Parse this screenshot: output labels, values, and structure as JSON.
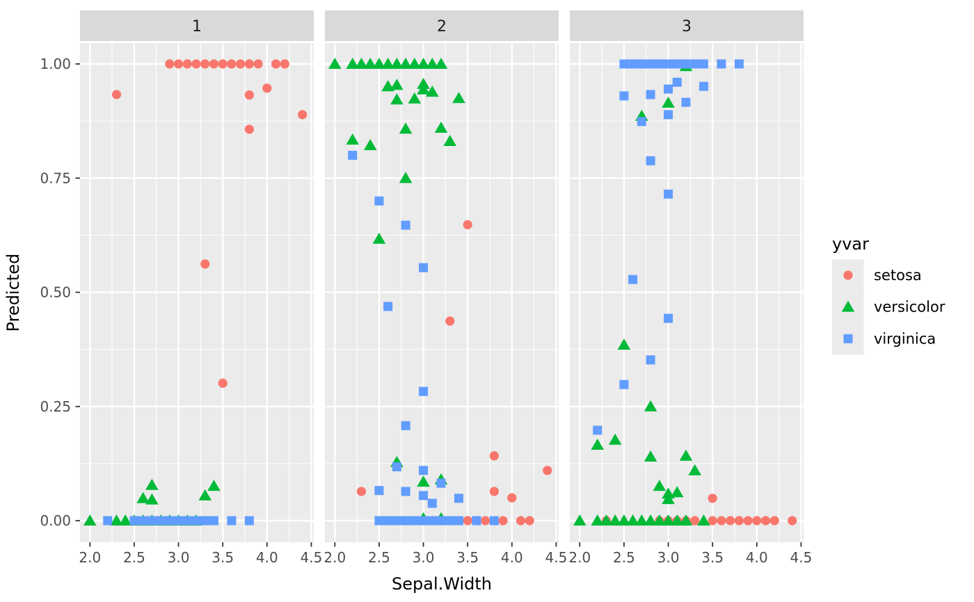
{
  "chart_data": {
    "type": "scatter",
    "xlabel": "Sepal.Width",
    "ylabel": "Predicted",
    "x_ticks": [
      2.0,
      2.5,
      3.0,
      3.5,
      4.0,
      4.5
    ],
    "x_tick_labels": [
      "2.0",
      "2.5",
      "3.0",
      "3.5",
      "4.0",
      "4.5"
    ],
    "x_minor_ticks": [
      2.25,
      2.75,
      3.25,
      3.75,
      4.25
    ],
    "y_ticks": [
      0.0,
      0.25,
      0.5,
      0.75,
      1.0
    ],
    "y_tick_labels": [
      "0.00",
      "0.25",
      "0.50",
      "0.75",
      "1.00"
    ],
    "y_minor_ticks": [
      0.125,
      0.375,
      0.625,
      0.875
    ],
    "xlim": [
      1.89,
      4.53
    ],
    "ylim": [
      -0.047,
      1.047
    ],
    "grid": true,
    "legend_position": "right",
    "legend_title": "yvar",
    "series_meta": [
      {
        "name": "setosa",
        "shape": "circle",
        "color": "#F8766D"
      },
      {
        "name": "versicolor",
        "shape": "triangle",
        "color": "#00BA38"
      },
      {
        "name": "virginica",
        "shape": "square",
        "color": "#619CFF"
      }
    ],
    "facets": [
      {
        "label": "1",
        "points": {
          "setosa": [
            [
              2.9,
              1
            ],
            [
              3.0,
              1
            ],
            [
              3.1,
              1
            ],
            [
              3.2,
              1
            ],
            [
              3.3,
              1
            ],
            [
              3.4,
              1
            ],
            [
              3.5,
              1
            ],
            [
              3.6,
              1
            ],
            [
              3.7,
              1
            ],
            [
              3.8,
              1
            ],
            [
              3.9,
              1
            ],
            [
              4.1,
              1
            ],
            [
              4.2,
              1
            ],
            [
              2.3,
              0.933
            ],
            [
              3.8,
              0.932
            ],
            [
              4.0,
              0.947
            ],
            [
              4.4,
              0.889
            ],
            [
              3.8,
              0.857
            ],
            [
              3.3,
              0.562
            ],
            [
              3.5,
              0.301
            ]
          ],
          "versicolor": [
            [
              2.6,
              0.049
            ],
            [
              2.7,
              0.078
            ],
            [
              2.7,
              0.046
            ],
            [
              3.3,
              0.055
            ],
            [
              3.4,
              0.076
            ],
            [
              2.0,
              0
            ],
            [
              2.3,
              0
            ],
            [
              2.4,
              0
            ],
            [
              2.5,
              0
            ],
            [
              2.6,
              0
            ],
            [
              2.7,
              0
            ],
            [
              2.8,
              0
            ],
            [
              2.9,
              0
            ],
            [
              3.0,
              0
            ],
            [
              3.1,
              0
            ],
            [
              3.2,
              0
            ]
          ],
          "virginica": [
            [
              2.2,
              0
            ],
            [
              2.5,
              0
            ],
            [
              2.6,
              0
            ],
            [
              2.7,
              0
            ],
            [
              2.8,
              0
            ],
            [
              2.9,
              0
            ],
            [
              3.0,
              0
            ],
            [
              3.1,
              0
            ],
            [
              3.2,
              0
            ],
            [
              3.3,
              0
            ],
            [
              3.4,
              0
            ],
            [
              3.6,
              0
            ],
            [
              3.8,
              0
            ]
          ]
        }
      },
      {
        "label": "2",
        "points": {
          "setosa": [
            [
              3.5,
              0.648
            ],
            [
              3.3,
              0.437
            ],
            [
              3.8,
              0.142
            ],
            [
              4.4,
              0.11
            ],
            [
              2.3,
              0.064
            ],
            [
              3.8,
              0.064
            ],
            [
              4.0,
              0.05
            ],
            [
              2.9,
              0
            ],
            [
              3.0,
              0
            ],
            [
              3.1,
              0
            ],
            [
              3.2,
              0
            ],
            [
              3.3,
              0
            ],
            [
              3.4,
              0
            ],
            [
              3.5,
              0
            ],
            [
              3.7,
              0
            ],
            [
              3.9,
              0
            ],
            [
              4.1,
              0
            ],
            [
              4.2,
              0
            ]
          ],
          "versicolor": [
            [
              2.0,
              1
            ],
            [
              2.2,
              1
            ],
            [
              2.3,
              1
            ],
            [
              2.4,
              1
            ],
            [
              2.5,
              1
            ],
            [
              2.6,
              1
            ],
            [
              2.7,
              1
            ],
            [
              2.8,
              1
            ],
            [
              2.9,
              1
            ],
            [
              3.0,
              1
            ],
            [
              3.1,
              1
            ],
            [
              3.2,
              1
            ],
            [
              2.6,
              0.951
            ],
            [
              2.7,
              0.954
            ],
            [
              3.0,
              0.956
            ],
            [
              3.0,
              0.944
            ],
            [
              3.1,
              0.939
            ],
            [
              2.7,
              0.922
            ],
            [
              2.9,
              0.924
            ],
            [
              3.4,
              0.925
            ],
            [
              2.8,
              0.858
            ],
            [
              3.2,
              0.86
            ],
            [
              2.2,
              0.834
            ],
            [
              3.3,
              0.831
            ],
            [
              2.4,
              0.822
            ],
            [
              2.8,
              0.75
            ],
            [
              2.5,
              0.617
            ],
            [
              2.7,
              0.128
            ],
            [
              3.0,
              0.085
            ],
            [
              3.2,
              0.09
            ],
            [
              3.0,
              0.005
            ],
            [
              3.2,
              0.005
            ]
          ],
          "virginica": [
            [
              2.2,
              0.8
            ],
            [
              2.5,
              0.7
            ],
            [
              2.8,
              0.647
            ],
            [
              3.0,
              0.554
            ],
            [
              2.6,
              0.469
            ],
            [
              3.0,
              0.283
            ],
            [
              2.8,
              0.208
            ],
            [
              2.7,
              0.118
            ],
            [
              3.0,
              0.11
            ],
            [
              3.2,
              0.082
            ],
            [
              2.5,
              0.066
            ],
            [
              2.8,
              0.064
            ],
            [
              3.0,
              0.055
            ],
            [
              3.4,
              0.049
            ],
            [
              3.1,
              0.038
            ],
            [
              2.5,
              0
            ],
            [
              2.6,
              0
            ],
            [
              2.7,
              0
            ],
            [
              2.8,
              0
            ],
            [
              2.9,
              0
            ],
            [
              3.0,
              0
            ],
            [
              3.1,
              0
            ],
            [
              3.2,
              0
            ],
            [
              3.3,
              0
            ],
            [
              3.4,
              0
            ],
            [
              3.6,
              0
            ],
            [
              3.8,
              0
            ]
          ]
        }
      },
      {
        "label": "3",
        "points": {
          "setosa": [
            [
              3.5,
              0.049
            ],
            [
              2.3,
              0
            ],
            [
              2.9,
              0
            ],
            [
              3.0,
              0
            ],
            [
              3.1,
              0
            ],
            [
              3.2,
              0
            ],
            [
              3.3,
              0
            ],
            [
              3.5,
              0
            ],
            [
              3.6,
              0
            ],
            [
              3.7,
              0
            ],
            [
              3.8,
              0
            ],
            [
              3.9,
              0
            ],
            [
              4.0,
              0
            ],
            [
              4.1,
              0
            ],
            [
              4.2,
              0
            ],
            [
              4.4,
              0
            ]
          ],
          "versicolor": [
            [
              3.2,
              0.995
            ],
            [
              3.0,
              0.915
            ],
            [
              2.7,
              0.886
            ],
            [
              2.5,
              0.385
            ],
            [
              2.8,
              0.25
            ],
            [
              2.4,
              0.177
            ],
            [
              2.2,
              0.166
            ],
            [
              2.8,
              0.14
            ],
            [
              3.2,
              0.142
            ],
            [
              3.3,
              0.11
            ],
            [
              2.9,
              0.076
            ],
            [
              3.1,
              0.062
            ],
            [
              3.0,
              0.059
            ],
            [
              3.0,
              0.047
            ],
            [
              2.0,
              0
            ],
            [
              2.2,
              0
            ],
            [
              2.3,
              0
            ],
            [
              2.4,
              0
            ],
            [
              2.5,
              0
            ],
            [
              2.6,
              0
            ],
            [
              2.7,
              0
            ],
            [
              2.8,
              0
            ],
            [
              2.9,
              0
            ],
            [
              3.0,
              0
            ],
            [
              3.1,
              0
            ],
            [
              3.2,
              0
            ],
            [
              3.4,
              0
            ]
          ],
          "virginica": [
            [
              2.5,
              1
            ],
            [
              2.6,
              1
            ],
            [
              2.7,
              1
            ],
            [
              2.8,
              1
            ],
            [
              2.9,
              1
            ],
            [
              3.0,
              1
            ],
            [
              3.1,
              1
            ],
            [
              3.2,
              1
            ],
            [
              3.3,
              1
            ],
            [
              3.4,
              1
            ],
            [
              3.6,
              1
            ],
            [
              3.8,
              1
            ],
            [
              3.1,
              0.96
            ],
            [
              3.4,
              0.951
            ],
            [
              3.0,
              0.945
            ],
            [
              2.8,
              0.933
            ],
            [
              2.5,
              0.93
            ],
            [
              3.2,
              0.916
            ],
            [
              3.0,
              0.889
            ],
            [
              2.7,
              0.874
            ],
            [
              2.8,
              0.788
            ],
            [
              3.0,
              0.715
            ],
            [
              2.6,
              0.528
            ],
            [
              3.0,
              0.443
            ],
            [
              2.8,
              0.352
            ],
            [
              2.5,
              0.298
            ],
            [
              2.2,
              0.198
            ]
          ]
        }
      }
    ]
  },
  "theme": {
    "background": "#FFFFFF",
    "panel_background": "#EBEBEB",
    "strip_background": "#D9D9D9",
    "grid_color": "#FFFFFF",
    "tick_mark_color": "#333333",
    "tick_text_color": "#4D4D4D",
    "title_text_color": "#000000",
    "legend_key_background": "#EBEBEB"
  }
}
